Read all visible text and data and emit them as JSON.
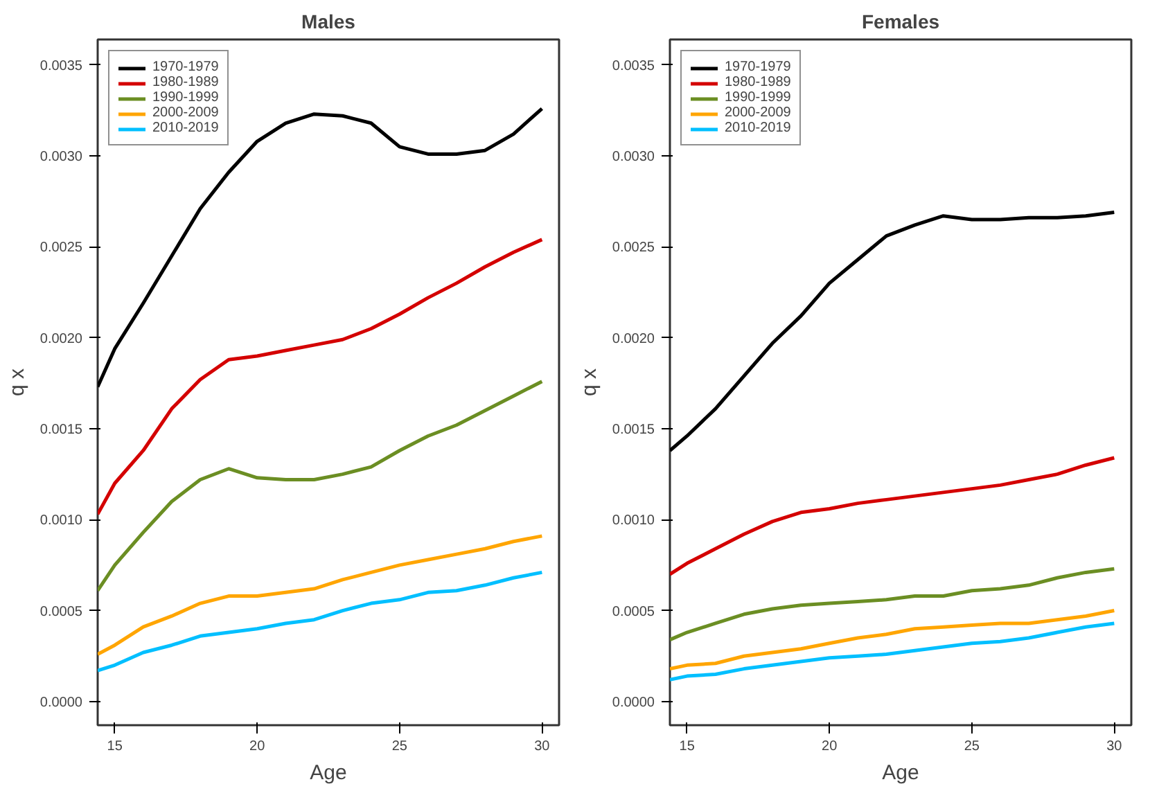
{
  "chart_data": [
    {
      "type": "line",
      "title": "Males",
      "xlabel": "Age",
      "ylabel": "q x",
      "x": [
        14.4,
        15,
        16,
        17,
        18,
        19,
        20,
        21,
        22,
        23,
        24,
        25,
        26,
        27,
        28,
        29,
        30
      ],
      "series": [
        {
          "name": "1970-1979",
          "color": "#000000",
          "values": [
            0.00173,
            0.00194,
            0.00219,
            0.00245,
            0.00271,
            0.00291,
            0.00308,
            0.00318,
            0.00323,
            0.00322,
            0.00318,
            0.00305,
            0.00301,
            0.00301,
            0.00303,
            0.00312,
            0.00326
          ]
        },
        {
          "name": "1980-1989",
          "color": "#d40000",
          "values": [
            0.00103,
            0.0012,
            0.00138,
            0.00161,
            0.00177,
            0.00188,
            0.0019,
            0.00193,
            0.00196,
            0.00199,
            0.00205,
            0.00213,
            0.00222,
            0.0023,
            0.00239,
            0.00247,
            0.00254
          ]
        },
        {
          "name": "1990-1999",
          "color": "#6b8e23",
          "values": [
            0.00061,
            0.00075,
            0.00093,
            0.0011,
            0.00122,
            0.00128,
            0.00123,
            0.00122,
            0.00122,
            0.00125,
            0.00129,
            0.00138,
            0.00146,
            0.00152,
            0.0016,
            0.00168,
            0.00176
          ]
        },
        {
          "name": "2000-2009",
          "color": "#ffa500",
          "values": [
            0.00026,
            0.00031,
            0.00041,
            0.00047,
            0.00054,
            0.00058,
            0.00058,
            0.0006,
            0.00062,
            0.00067,
            0.00071,
            0.00075,
            0.00078,
            0.00081,
            0.00084,
            0.00088,
            0.00091
          ]
        },
        {
          "name": "2010-2019",
          "color": "#00bfff",
          "values": [
            0.00017,
            0.0002,
            0.00027,
            0.00031,
            0.00036,
            0.00038,
            0.0004,
            0.00043,
            0.00045,
            0.0005,
            0.00054,
            0.00056,
            0.0006,
            0.00061,
            0.00064,
            0.00068,
            0.00071
          ]
        }
      ],
      "xlim": [
        14.4,
        30.6
      ],
      "ylim": [
        -0.00013,
        0.00364
      ],
      "xticks": [
        15,
        20,
        25,
        30
      ],
      "yticks": [
        {
          "value": 0,
          "label": "0.0000"
        },
        {
          "value": 0.0005,
          "label": "0.0005"
        },
        {
          "value": 0.001,
          "label": "0.0010"
        },
        {
          "value": 0.0015,
          "label": "0.0015"
        },
        {
          "value": 0.002,
          "label": "0.0020"
        },
        {
          "value": 0.0025,
          "label": "0.0025"
        },
        {
          "value": 0.003,
          "label": "0.0030"
        },
        {
          "value": 0.0035,
          "label": "0.0035"
        }
      ],
      "grid": false,
      "legend": "top left",
      "marker": "none",
      "line_style": "solid"
    },
    {
      "type": "line",
      "title": "Females",
      "xlabel": "Age",
      "ylabel": "q x",
      "x": [
        14.4,
        15,
        16,
        17,
        18,
        19,
        20,
        21,
        22,
        23,
        24,
        25,
        26,
        27,
        28,
        29,
        30
      ],
      "series": [
        {
          "name": "1970-1979",
          "color": "#000000",
          "values": [
            0.00138,
            0.00146,
            0.00161,
            0.00179,
            0.00197,
            0.00212,
            0.0023,
            0.00243,
            0.00256,
            0.00262,
            0.00267,
            0.00265,
            0.00265,
            0.00266,
            0.00266,
            0.00267,
            0.00269
          ]
        },
        {
          "name": "1980-1989",
          "color": "#d40000",
          "values": [
            0.0007,
            0.00076,
            0.00084,
            0.00092,
            0.00099,
            0.00104,
            0.00106,
            0.00109,
            0.00111,
            0.00113,
            0.00115,
            0.00117,
            0.00119,
            0.00122,
            0.00125,
            0.0013,
            0.00134
          ]
        },
        {
          "name": "1990-1999",
          "color": "#6b8e23",
          "values": [
            0.00034,
            0.00038,
            0.00043,
            0.00048,
            0.00051,
            0.00053,
            0.00054,
            0.00055,
            0.00056,
            0.00058,
            0.00058,
            0.00061,
            0.00062,
            0.00064,
            0.00068,
            0.00071,
            0.00073
          ]
        },
        {
          "name": "2000-2009",
          "color": "#ffa500",
          "values": [
            0.00018,
            0.0002,
            0.00021,
            0.00025,
            0.00027,
            0.00029,
            0.00032,
            0.00035,
            0.00037,
            0.0004,
            0.00041,
            0.00042,
            0.00043,
            0.00043,
            0.00045,
            0.00047,
            0.0005
          ]
        },
        {
          "name": "2010-2019",
          "color": "#00bfff",
          "values": [
            0.00012,
            0.00014,
            0.00015,
            0.00018,
            0.0002,
            0.00022,
            0.00024,
            0.00025,
            0.00026,
            0.00028,
            0.0003,
            0.00032,
            0.00033,
            0.00035,
            0.00038,
            0.00041,
            0.00043
          ]
        }
      ],
      "xlim": [
        14.4,
        30.6
      ],
      "ylim": [
        -0.00013,
        0.00364
      ],
      "xticks": [
        15,
        20,
        25,
        30
      ],
      "yticks": [
        {
          "value": 0,
          "label": "0.0000"
        },
        {
          "value": 0.0005,
          "label": "0.0005"
        },
        {
          "value": 0.001,
          "label": "0.0010"
        },
        {
          "value": 0.0015,
          "label": "0.0015"
        },
        {
          "value": 0.002,
          "label": "0.0020"
        },
        {
          "value": 0.0025,
          "label": "0.0025"
        },
        {
          "value": 0.003,
          "label": "0.0030"
        },
        {
          "value": 0.0035,
          "label": "0.0035"
        }
      ],
      "grid": false,
      "legend": "top left",
      "marker": "none",
      "line_style": "solid"
    }
  ]
}
